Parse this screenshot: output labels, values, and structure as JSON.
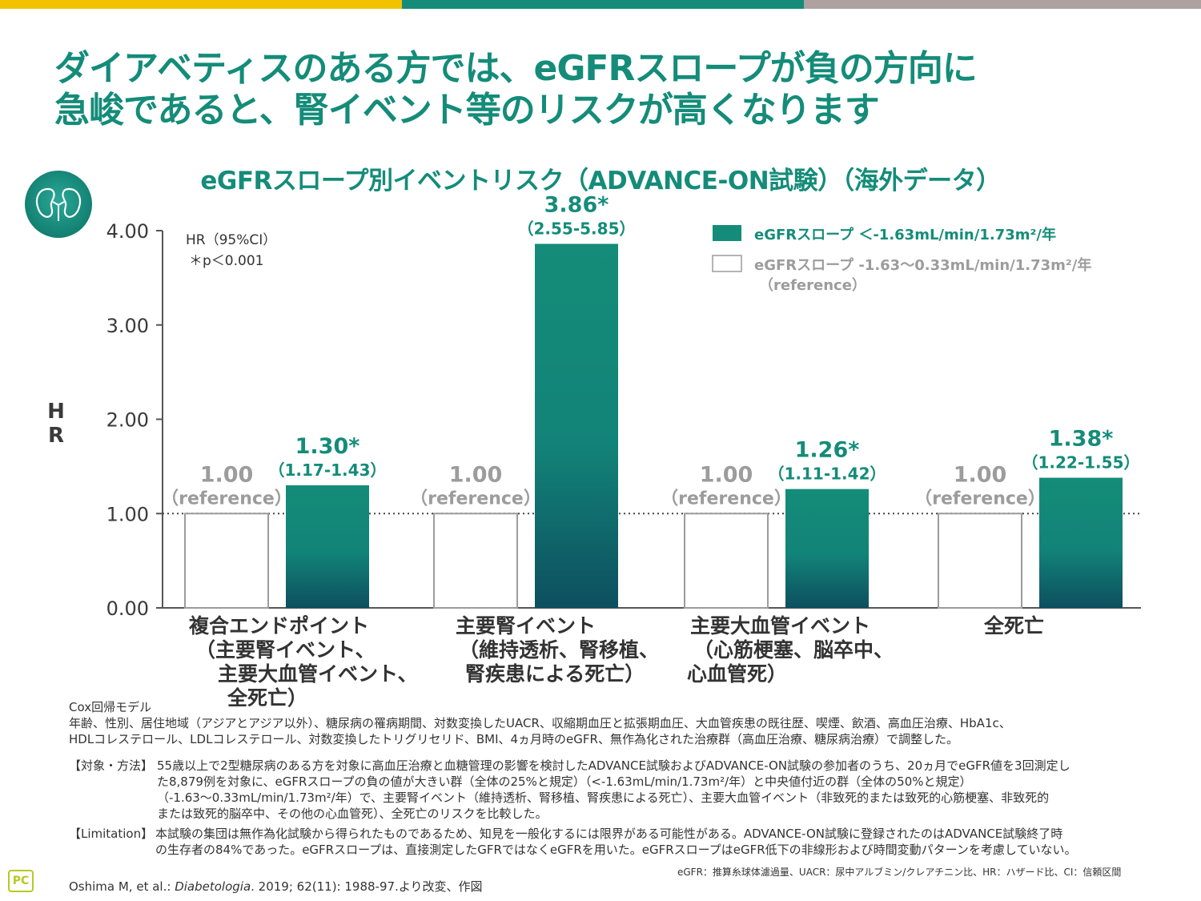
{
  "colors": {
    "teal": "#148c79",
    "teal_dark": "#0d4f5f",
    "gray": "#9c9c9c",
    "bar1": "#f2c200",
    "bar2": "#148c79",
    "bar3": "#aea2a0",
    "text": "#333333"
  },
  "title_line1": "ダイアベティスのある方では、eGFRスロープが負の方向に",
  "title_line2": "急峻であると、腎イベント等のリスクが高くなります",
  "subtitle": "eGFRスロープ別イベントリスク（ADVANCE-ON試験）（海外データ）",
  "icon": "kidney-icon",
  "chart_data": {
    "type": "bar",
    "title": "eGFRスロープ別イベントリスク（ADVANCE-ON試験）（海外データ）",
    "ylabel": "HR",
    "ylim": [
      0,
      4
    ],
    "yticks": [
      "0.00",
      "1.00",
      "2.00",
      "3.00",
      "4.00"
    ],
    "reference_line": 1.0,
    "note_line1": "HR（95%CI）",
    "note_line2": "＊p＜0.001",
    "categories": [
      [
        "複合エンドポイント",
        "（主要腎イベント、",
        "主要大血管イベント、",
        "全死亡）"
      ],
      [
        "主要腎イベント",
        "（維持透析、腎移植、",
        "腎疾患による死亡）"
      ],
      [
        "主要大血管イベント",
        "（心筋梗塞、脳卒中、",
        "心血管死）"
      ],
      [
        "全死亡"
      ]
    ],
    "series": [
      {
        "name": "eGFRスロープ -1.63〜0.33mL/min/1.73m²/年（reference）",
        "values": [
          1.0,
          1.0,
          1.0,
          1.0
        ],
        "labels": [
          "1.00",
          "1.00",
          "1.00",
          "1.00"
        ],
        "ci": [
          "（reference）",
          "（reference）",
          "（reference）",
          "（reference）"
        ]
      },
      {
        "name": "eGFRスロープ ＜-1.63mL/min/1.73m²/年",
        "values": [
          1.3,
          3.86,
          1.26,
          1.38
        ],
        "labels": [
          "1.30*",
          "3.86*",
          "1.26*",
          "1.38*"
        ],
        "ci": [
          "（1.17-1.43）",
          "（2.55-5.85）",
          "（1.11-1.42）",
          "（1.22-1.55）"
        ]
      }
    ],
    "legend": {
      "item1": "eGFRスロープ ＜-1.63mL/min/1.73m²/年",
      "item2_line1": "eGFRスロープ -1.63〜0.33mL/min/1.73m²/年",
      "item2_line2": "（reference）"
    }
  },
  "footnotes": {
    "cox_title": "Cox回帰モデル",
    "cox_line1": "年齢、性別、居住地域（アジアとアジア以外）、糖尿病の罹病期間、対数変換したUACR、収縮期血圧と拡張期血圧、大血管疾患の既往歴、喫煙、飲酒、高血圧治療、HbA1c、",
    "cox_line2": "HDLコレステロール、LDLコレステロール、対数変換したトリグリセリド、BMI、4ヵ月時のeGFR、無作為化された治療群（高血圧治療、糖尿病治療）で調整した。",
    "method_label": "【対象・方法】",
    "method_line1": "55歳以上で2型糖尿病のある方を対象に高血圧治療と血糖管理の影響を検討したADVANCE試験およびADVANCE-ON試験の参加者のうち、20ヵ月でeGFR値を3回測定し",
    "method_line2": "た8,879例を対象に、eGFRスロープの負の値が大きい群（全体の25%と規定）（<-1.63mL/min/1.73m²/年）と中央値付近の群（全体の50%と規定）",
    "method_line3": "（-1.63〜0.33mL/min/1.73m²/年）で、主要腎イベント（維持透析、腎移植、腎疾患による死亡）、主要大血管イベント（非致死的または致死的心筋梗塞、非致死的",
    "method_line4": "または致死的脳卒中、その他の心血管死）、全死亡のリスクを比較した。",
    "limit_label": "【Limitation】",
    "limit_line1": "本試験の集団は無作為化試験から得られたものであるため、知見を一般化するには限界がある可能性がある。ADVANCE-ON試験に登録されたのはADVANCE試験終了時",
    "limit_line2": "の生存者の84%であった。eGFRスロープは、直接測定したGFRではなくeGFRを用いた。eGFRスロープはeGFR低下の非線形および時間変動パターンを考慮していない。",
    "abbrev": "eGFR：推算糸球体濾過量、UACR：尿中アルブミン/クレアチニン比、HR：ハザード比、CI：信頼区間",
    "citation_pre": "Oshima M, et al.: ",
    "citation_journal": "Diabetologia",
    "citation_post": ". 2019; 62(11): 1988-97.より改変、作図",
    "logo_text": "PC"
  }
}
